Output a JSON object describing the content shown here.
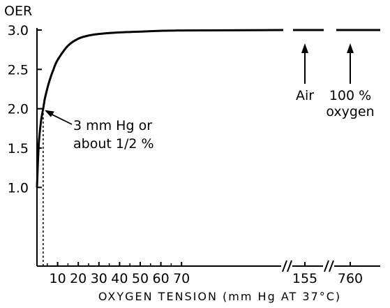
{
  "chart_data": {
    "type": "line",
    "title": "",
    "ylabel": "OER",
    "xlabel": "OXYGEN TENSION (mm Hg AT 37°C)",
    "ylim": [
      0.0,
      3.0
    ],
    "y_ticks": [
      "1.0",
      "1.5",
      "2.0",
      "2.5",
      "3.0"
    ],
    "y_tick_values": [
      1.0,
      1.5,
      2.0,
      2.5,
      3.0
    ],
    "x_ticks": [
      "10",
      "20",
      "30",
      "40",
      "50",
      "60",
      "70",
      "155",
      "760"
    ],
    "x_tick_values": [
      10,
      20,
      30,
      40,
      50,
      60,
      70,
      155,
      760
    ],
    "axis_breaks": [
      "between 70 and 155",
      "between 155 and 760"
    ],
    "series": [
      {
        "points": [
          {
            "x": 0,
            "y": 1.0
          },
          {
            "x": 0.5,
            "y": 1.35
          },
          {
            "x": 1,
            "y": 1.6
          },
          {
            "x": 2,
            "y": 1.85
          },
          {
            "x": 3,
            "y": 2.0
          },
          {
            "x": 4,
            "y": 2.15
          },
          {
            "x": 6,
            "y": 2.35
          },
          {
            "x": 8,
            "y": 2.5
          },
          {
            "x": 10,
            "y": 2.62
          },
          {
            "x": 15,
            "y": 2.8
          },
          {
            "x": 20,
            "y": 2.89
          },
          {
            "x": 25,
            "y": 2.93
          },
          {
            "x": 30,
            "y": 2.95
          },
          {
            "x": 40,
            "y": 2.97
          },
          {
            "x": 50,
            "y": 2.98
          },
          {
            "x": 60,
            "y": 2.99
          },
          {
            "x": 70,
            "y": 2.995
          },
          {
            "x": 155,
            "y": 3.0
          },
          {
            "x": 760,
            "y": 3.0
          }
        ]
      }
    ],
    "annotations": [
      {
        "text_lines": [
          "3 mm Hg or",
          "about 1/2 %"
        ],
        "points_to": {
          "x": 3,
          "y": 2.0
        }
      },
      {
        "text_lines": [
          "Air"
        ],
        "points_to": {
          "x": 155,
          "y": 3.0
        }
      },
      {
        "text_lines": [
          "100 %",
          "oxygen"
        ],
        "points_to": {
          "x": 760,
          "y": 3.0
        }
      }
    ],
    "reference_lines": [
      {
        "style": "dotted",
        "x": 3,
        "from_y": 0.0,
        "to_y": 2.0
      },
      {
        "style": "solid",
        "y": 2.0,
        "from_x": 0,
        "to_x": 3
      }
    ]
  }
}
